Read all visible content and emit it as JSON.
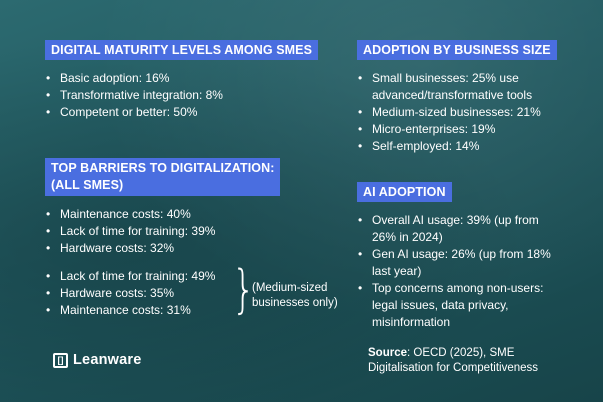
{
  "digital_maturity": {
    "title": "DIGITAL MATURITY LEVELS AMONG SMES",
    "items": [
      "Basic adoption: 16%",
      "Transformative integration: 8%",
      "Competent or better: 50%"
    ]
  },
  "barriers": {
    "title_line1": "TOP BARRIERS TO DIGITALIZATION:",
    "title_line2": "(ALL SMES)",
    "all_items": [
      "Maintenance costs: 40%",
      "Lack of time for training: 39%",
      "Hardware costs: 32%"
    ],
    "medium_items": [
      "Lack of time for training: 49%",
      "Hardware costs: 35%",
      "Maintenance costs: 31%"
    ],
    "medium_note_line1": "(Medium-sized",
    "medium_note_line2": "businesses only)"
  },
  "adoption_by_size": {
    "title": "ADOPTION BY BUSINESS SIZE",
    "items": [
      {
        "line1": "Small businesses: 25% use",
        "line2": "advanced/transformative tools"
      },
      {
        "line1": "Medium-sized businesses: 21%"
      },
      {
        "line1": "Micro-enterprises: 19%"
      },
      {
        "line1": "Self-employed: 14%"
      }
    ]
  },
  "ai_adoption": {
    "title": "AI ADOPTION",
    "items": [
      {
        "line1": "Overall AI usage: 39% (up from",
        "line2": "26% in 2024)"
      },
      {
        "line1": "Gen AI usage: 26% (up from 18%",
        "line2": "last year)"
      },
      {
        "line1": "Top concerns among non-users:",
        "line2": "legal issues, data privacy,",
        "line3": "misinformation"
      }
    ]
  },
  "brand": {
    "logo_mark": "[]",
    "name": "Leanware"
  },
  "source": {
    "label": "Source",
    "text_line1": ": OECD (2025), SME",
    "text_line2": "Digitalisation for Competitiveness"
  },
  "colors": {
    "heading_bg": "#4a6ee0",
    "background": "#1f575e",
    "text": "#ffffff"
  }
}
